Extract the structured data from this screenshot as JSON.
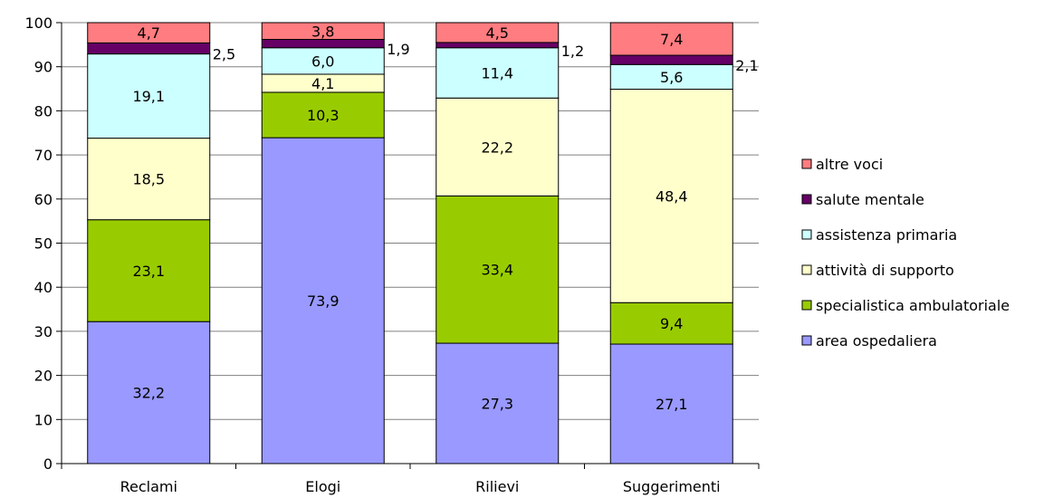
{
  "chart_data": {
    "type": "bar",
    "stacked": true,
    "categories": [
      "Reclami",
      "Elogi",
      "Rilievi",
      "Suggerimenti"
    ],
    "ylim": [
      0,
      100
    ],
    "yticks": [
      0,
      10,
      20,
      30,
      40,
      50,
      60,
      70,
      80,
      90,
      100
    ],
    "grid": true,
    "legend_position": "right",
    "series": [
      {
        "name": "area ospedaliera",
        "color": "#9999ff",
        "values": [
          32.2,
          73.9,
          27.3,
          27.1
        ],
        "labels": [
          "32,2",
          "73,9",
          "27,3",
          "27,1"
        ]
      },
      {
        "name": "specialistica ambulatoriale",
        "color": "#99cc00",
        "values": [
          23.1,
          10.3,
          33.4,
          9.4
        ],
        "labels": [
          "23,1",
          "10,3",
          "33,4",
          "9,4"
        ]
      },
      {
        "name": "attività di supporto",
        "color": "#ffffcc",
        "values": [
          18.5,
          4.1,
          22.2,
          48.4
        ],
        "labels": [
          "18,5",
          "4,1",
          "22,2",
          "48,4"
        ]
      },
      {
        "name": "assistenza primaria",
        "color": "#ccffff",
        "values": [
          19.1,
          6.0,
          11.4,
          5.6
        ],
        "labels": [
          "19,1",
          "6,0",
          "11,4",
          "5,6"
        ]
      },
      {
        "name": "salute mentale",
        "color": "#660066",
        "values": [
          2.5,
          1.9,
          1.2,
          2.1
        ],
        "labels": [
          "2,5",
          "1,9",
          "1,2",
          "2,1"
        ]
      },
      {
        "name": "altre voci",
        "color": "#ff7c80",
        "values": [
          4.7,
          3.8,
          4.5,
          7.4
        ],
        "labels": [
          "4,7",
          "3,8",
          "4,5",
          "7,4"
        ]
      }
    ]
  }
}
